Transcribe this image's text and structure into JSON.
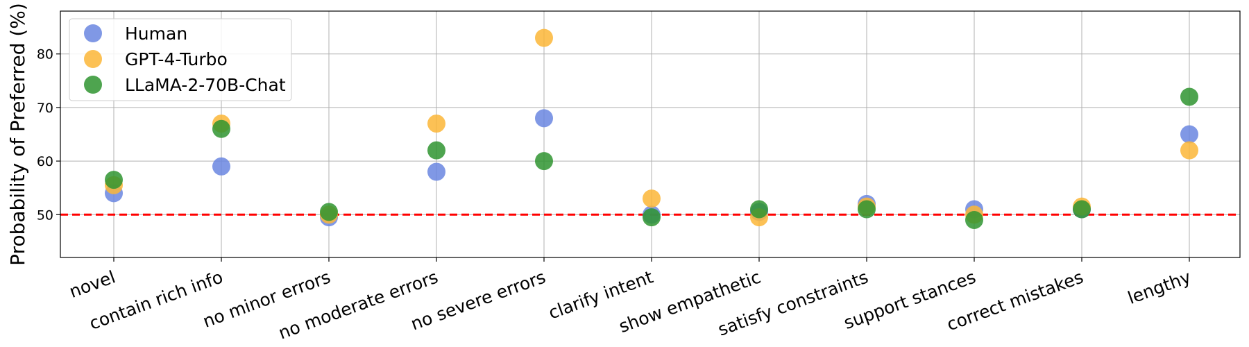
{
  "chart_data": {
    "type": "scatter",
    "title": "",
    "xlabel": "",
    "ylabel": "Probability of Preferred (%)",
    "categories": [
      "novel",
      "contain rich info",
      "no minor errors",
      "no moderate errors",
      "no severe errors",
      "clarify intent",
      "show empathetic",
      "satisfy constraints",
      "support stances",
      "correct mistakes",
      "lengthy"
    ],
    "ylim": [
      42,
      88
    ],
    "yticks": [
      50,
      60,
      70,
      80
    ],
    "grid": true,
    "legend_position": "top-left",
    "reference_line": {
      "y": 50,
      "color": "#ff0000",
      "style": "dashed"
    },
    "series": [
      {
        "name": "Human",
        "color": "#6a86e0",
        "values": [
          54,
          59,
          49.5,
          58,
          68,
          50,
          50.5,
          52,
          51,
          51,
          65
        ]
      },
      {
        "name": "GPT-4-Turbo",
        "color": "#fbb637",
        "values": [
          55.5,
          67,
          50,
          67,
          83,
          53,
          49.5,
          51.5,
          50,
          51.5,
          62
        ]
      },
      {
        "name": "LLaMA-2-70B-Chat",
        "color": "#2f9430",
        "values": [
          56.5,
          66,
          50.5,
          62,
          60,
          49.5,
          51,
          51,
          49,
          51,
          72
        ]
      }
    ]
  }
}
